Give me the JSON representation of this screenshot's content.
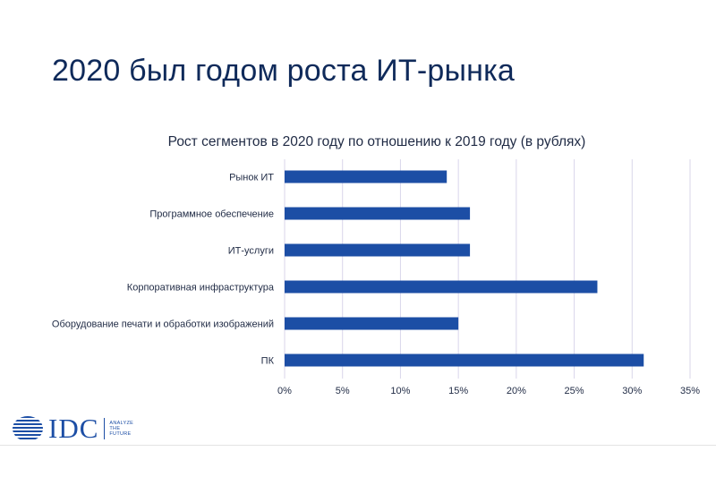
{
  "slide": {
    "title": "2020 был годом роста ИТ-рынка"
  },
  "chart_data": {
    "type": "bar",
    "orientation": "horizontal",
    "title": "Рост сегментов в 2020 году по отношению к 2019 году (в рублях)",
    "categories": [
      "Рынок ИТ",
      "Программное обеспечение",
      "ИТ-услуги",
      "Корпоративная инфраструктура",
      "Оборудование печати и обработки изображений",
      "ПК"
    ],
    "values": [
      14,
      16,
      16,
      27,
      15,
      31
    ],
    "xlim": [
      0,
      35
    ],
    "ticks": [
      0,
      5,
      10,
      15,
      20,
      25,
      30,
      35
    ],
    "tick_labels": [
      "0%",
      "5%",
      "10%",
      "15%",
      "20%",
      "25%",
      "30%",
      "35%"
    ],
    "grid": true,
    "bar_color": "#1c4ea5"
  },
  "footer": {
    "logo_text": "IDC",
    "tagline_lines": [
      "ANALYZE",
      "THE",
      "FUTURE"
    ],
    "brand_color": "#1c4ea5"
  }
}
